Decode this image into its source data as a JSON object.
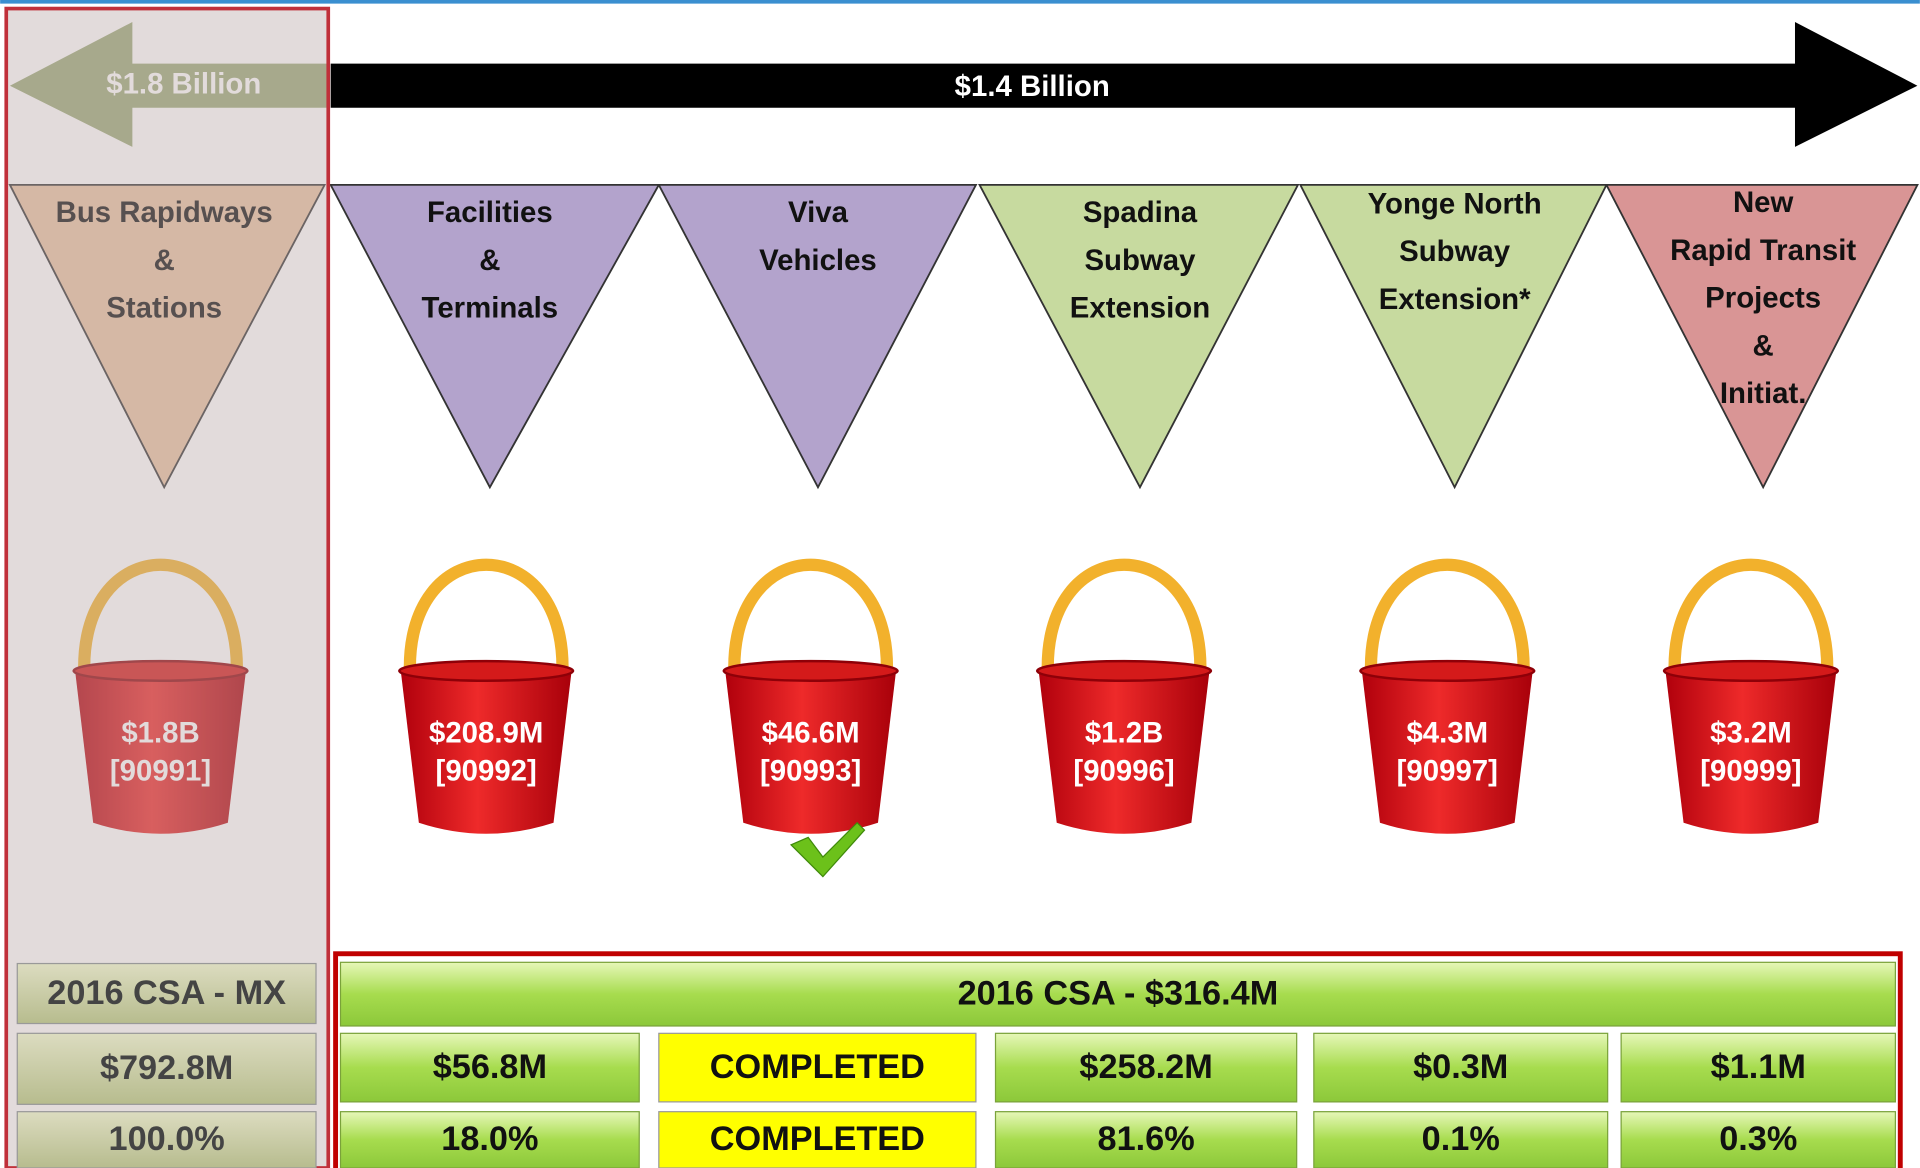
{
  "arrows": {
    "left": "$1.8 Billion",
    "right": "$1.4 Billion"
  },
  "columns": [
    {
      "label": [
        "Bus Rapidways",
        "&",
        "Stations"
      ],
      "bucket": [
        "$1.8B",
        "[90991]"
      ]
    },
    {
      "label": [
        "Facilities",
        "&",
        "Terminals"
      ],
      "bucket": [
        "$208.9M",
        "[90992]"
      ]
    },
    {
      "label": [
        "Viva",
        "Vehicles"
      ],
      "bucket": [
        "$46.6M",
        "[90993]"
      ]
    },
    {
      "label": [
        "Spadina",
        "Subway",
        "Extension"
      ],
      "bucket": [
        "$1.2B",
        "[90996]"
      ]
    },
    {
      "label": [
        "Yonge North",
        "Subway",
        "Extension*"
      ],
      "bucket": [
        "$4.3M",
        "[90997]"
      ]
    },
    {
      "label": [
        "New",
        "Rapid Transit",
        "Projects",
        "&",
        "Initiat."
      ],
      "bucket": [
        "$3.2M",
        "[90999]"
      ]
    }
  ],
  "summary": {
    "left": {
      "title": "2016 CSA - MX",
      "amount": "$792.8M",
      "percent": "100.0%"
    },
    "right": {
      "title": "2016 CSA -  $316.4M",
      "amounts": [
        "$56.8M",
        "COMPLETED",
        "$258.2M",
        "$0.3M",
        "$1.1M"
      ],
      "percents": [
        "18.0%",
        "COMPLETED",
        "81.6%",
        "0.1%",
        "0.3%"
      ]
    }
  }
}
